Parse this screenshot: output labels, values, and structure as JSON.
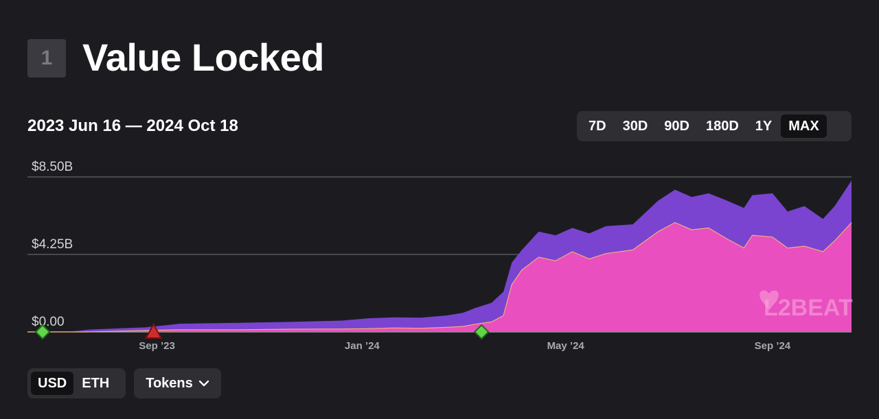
{
  "section": {
    "number": "1",
    "title": "Value Locked"
  },
  "date_range": "2023 Jun 16 — 2024 Oct 18",
  "range_options": [
    "7D",
    "30D",
    "90D",
    "180D",
    "1Y",
    "MAX"
  ],
  "range_selected": "MAX",
  "unit_options": [
    "USD",
    "ETH"
  ],
  "unit_selected": "USD",
  "tokens_label": "Tokens",
  "icons": {
    "tokens_dropdown": "chevron-down-icon",
    "watermark": "l2beat-logo"
  },
  "watermark": "L2BEAT",
  "colors": {
    "background": "#1c1c20",
    "total_area": "#7a44d0",
    "lower_area": "#e94fbf",
    "lower_line": "#f0b07a",
    "up_marker": "#62d64a",
    "down_marker": "#cc2e2e"
  },
  "chart_data": {
    "type": "area",
    "title": "Value Locked",
    "y_tick_labels": [
      "$8.50B",
      "$4.25B",
      "$0.00"
    ],
    "y_tick_values": [
      8.5,
      4.25,
      0
    ],
    "ylim": [
      0,
      8.5
    ],
    "y_unit": "B USD",
    "x_domain": [
      "2023-06-16",
      "2024-10-18"
    ],
    "x_ticks": [
      {
        "label": "Sep ’23",
        "date": "2023-09-01"
      },
      {
        "label": "Jan ’24",
        "date": "2024-01-01"
      },
      {
        "label": "May ’24",
        "date": "2024-05-01"
      },
      {
        "label": "Sep ’24",
        "date": "2024-09-01"
      }
    ],
    "series": [
      {
        "name": "total",
        "points": [
          [
            "2023-06-16",
            0
          ],
          [
            "2023-07-10",
            0
          ],
          [
            "2023-07-22",
            0.12
          ],
          [
            "2023-08-10",
            0.2
          ],
          [
            "2023-08-25",
            0.25
          ],
          [
            "2023-09-15",
            0.45
          ],
          [
            "2023-10-20",
            0.5
          ],
          [
            "2023-11-20",
            0.55
          ],
          [
            "2023-12-20",
            0.62
          ],
          [
            "2024-01-05",
            0.75
          ],
          [
            "2024-01-20",
            0.8
          ],
          [
            "2024-02-05",
            0.78
          ],
          [
            "2024-02-20",
            0.9
          ],
          [
            "2024-03-01",
            1.05
          ],
          [
            "2024-03-08",
            1.3
          ],
          [
            "2024-03-18",
            1.6
          ],
          [
            "2024-03-25",
            2.2
          ],
          [
            "2024-03-30",
            3.8
          ],
          [
            "2024-04-05",
            4.5
          ],
          [
            "2024-04-15",
            5.5
          ],
          [
            "2024-04-25",
            5.3
          ],
          [
            "2024-05-05",
            5.7
          ],
          [
            "2024-05-15",
            5.4
          ],
          [
            "2024-05-25",
            5.8
          ],
          [
            "2024-06-10",
            5.9
          ],
          [
            "2024-06-25",
            7.2
          ],
          [
            "2024-07-05",
            7.8
          ],
          [
            "2024-07-15",
            7.4
          ],
          [
            "2024-07-25",
            7.6
          ],
          [
            "2024-08-05",
            7.2
          ],
          [
            "2024-08-15",
            6.8
          ],
          [
            "2024-08-20",
            7.5
          ],
          [
            "2024-09-01",
            7.6
          ],
          [
            "2024-09-10",
            6.6
          ],
          [
            "2024-09-20",
            6.9
          ],
          [
            "2024-10-01",
            6.2
          ],
          [
            "2024-10-08",
            6.9
          ],
          [
            "2024-10-18",
            8.3
          ]
        ]
      },
      {
        "name": "lower",
        "points": [
          [
            "2023-06-16",
            0
          ],
          [
            "2023-07-22",
            0
          ],
          [
            "2023-08-10",
            0.04
          ],
          [
            "2023-09-15",
            0.12
          ],
          [
            "2023-10-20",
            0.12
          ],
          [
            "2023-11-20",
            0.15
          ],
          [
            "2023-12-20",
            0.16
          ],
          [
            "2024-01-05",
            0.18
          ],
          [
            "2024-01-20",
            0.22
          ],
          [
            "2024-02-05",
            0.2
          ],
          [
            "2024-02-20",
            0.25
          ],
          [
            "2024-03-01",
            0.3
          ],
          [
            "2024-03-08",
            0.42
          ],
          [
            "2024-03-18",
            0.55
          ],
          [
            "2024-03-25",
            0.9
          ],
          [
            "2024-03-30",
            2.6
          ],
          [
            "2024-04-05",
            3.4
          ],
          [
            "2024-04-15",
            4.1
          ],
          [
            "2024-04-25",
            3.9
          ],
          [
            "2024-05-05",
            4.4
          ],
          [
            "2024-05-15",
            4.0
          ],
          [
            "2024-05-25",
            4.3
          ],
          [
            "2024-06-10",
            4.5
          ],
          [
            "2024-06-25",
            5.5
          ],
          [
            "2024-07-05",
            6.0
          ],
          [
            "2024-07-15",
            5.6
          ],
          [
            "2024-07-25",
            5.7
          ],
          [
            "2024-08-05",
            5.1
          ],
          [
            "2024-08-15",
            4.6
          ],
          [
            "2024-08-20",
            5.3
          ],
          [
            "2024-09-01",
            5.2
          ],
          [
            "2024-09-10",
            4.6
          ],
          [
            "2024-09-20",
            4.7
          ],
          [
            "2024-10-01",
            4.4
          ],
          [
            "2024-10-08",
            5.0
          ],
          [
            "2024-10-18",
            6.0
          ]
        ]
      }
    ],
    "markers": [
      {
        "date": "2023-06-25",
        "value": 0,
        "shape": "diamond",
        "color": "#62d64a"
      },
      {
        "date": "2023-08-30",
        "value": 0,
        "shape": "triangle",
        "color": "#cc2e2e"
      },
      {
        "date": "2024-03-12",
        "value": 0,
        "shape": "diamond",
        "color": "#62d64a"
      }
    ]
  }
}
